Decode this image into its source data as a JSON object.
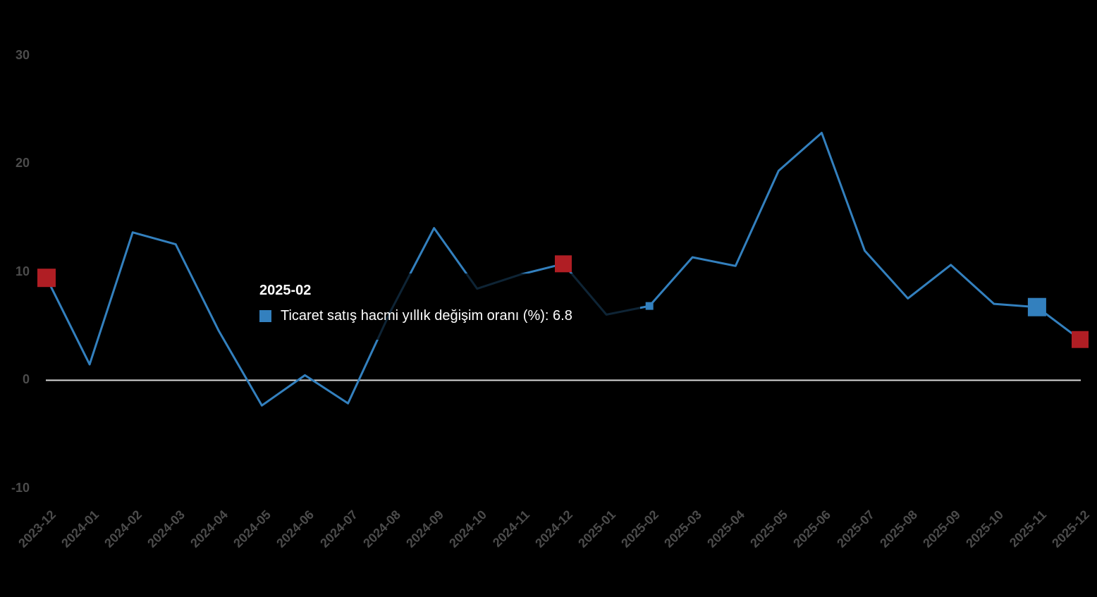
{
  "chart_data": {
    "type": "line",
    "title": "",
    "xlabel": "",
    "ylabel": "",
    "categories": [
      "2023-12",
      "2024-01",
      "2024-02",
      "2024-03",
      "2024-04",
      "2024-05",
      "2024-06",
      "2024-07",
      "2024-08",
      "2024-09",
      "2024-10",
      "2024-11",
      "2024-12",
      "2025-01",
      "2025-02",
      "2025-03",
      "2025-04",
      "2025-05",
      "2025-06",
      "2025-07",
      "2025-08",
      "2025-09",
      "2025-10",
      "2025-11",
      "2025-12"
    ],
    "series": [
      {
        "name": "Ticaret satış hacmi yıllık değişim oranı (%)",
        "values": [
          9.4,
          1.4,
          13.6,
          12.5,
          4.5,
          -2.4,
          0.4,
          -2.2,
          6.4,
          14.0,
          8.4,
          9.7,
          10.7,
          6.0,
          6.8,
          11.3,
          10.5,
          19.3,
          22.8,
          11.9,
          7.5,
          10.6,
          7.0,
          6.7,
          3.7
        ]
      }
    ],
    "y_ticks": [
      30,
      20,
      10,
      0,
      -10
    ],
    "y_tick_labels": [
      "30",
      "20",
      "10",
      "0",
      "-10"
    ],
    "ylim": [
      -12,
      31
    ],
    "grid": "off",
    "zero_line": "on",
    "legend_position": "none",
    "x_label_rotation": -45,
    "highlight_markers": [
      {
        "index": 0,
        "category": "2023-12",
        "color": "red",
        "size": 26,
        "name": "marker-2023-12"
      },
      {
        "index": 12,
        "category": "2024-12",
        "color": "red",
        "size": 24,
        "name": "marker-2024-12"
      },
      {
        "index": 14,
        "category": "2025-02",
        "color": "blue",
        "size": 11,
        "name": "hovered-point-marker-2025-02"
      },
      {
        "index": 23,
        "category": "2025-11",
        "color": "blue",
        "size": 26,
        "name": "marker-2025-11"
      },
      {
        "index": 24,
        "category": "2025-12",
        "color": "red",
        "size": 24,
        "name": "marker-2025-12"
      }
    ],
    "colors": {
      "line": "#3380BE",
      "blue": "#3380BE",
      "red": "#B01E24",
      "zero_line": "#D9D9D9",
      "axis_label": "#4C4C4C",
      "tooltip_text": "#FFFFFF"
    }
  },
  "tooltip": {
    "header": "2025-02",
    "series_label": "Ticaret satış hacmi yıllık değişim oranı (%)",
    "value": "6.8",
    "series_text": "Ticaret satış hacmi yıllık değişim oranı (%): 6.8"
  }
}
